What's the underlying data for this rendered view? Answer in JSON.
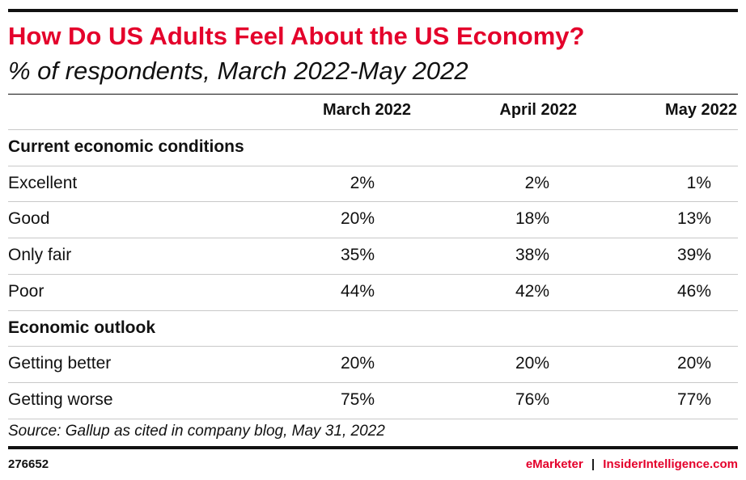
{
  "header": {
    "title": "How Do US Adults Feel About the US Economy?",
    "subtitle": "% of respondents, March 2022-May 2022"
  },
  "table": {
    "columns": [
      "March 2022",
      "April 2022",
      "May 2022"
    ],
    "sections": [
      {
        "title": "Current economic conditions",
        "rows": [
          {
            "label": "Excellent",
            "values": [
              "2%",
              "2%",
              "1%"
            ]
          },
          {
            "label": "Good",
            "values": [
              "20%",
              "18%",
              "13%"
            ]
          },
          {
            "label": "Only fair",
            "values": [
              "35%",
              "38%",
              "39%"
            ]
          },
          {
            "label": "Poor",
            "values": [
              "44%",
              "42%",
              "46%"
            ]
          }
        ]
      },
      {
        "title": "Economic outlook",
        "rows": [
          {
            "label": "Getting better",
            "values": [
              "20%",
              "20%",
              "20%"
            ]
          },
          {
            "label": "Getting worse",
            "values": [
              "75%",
              "76%",
              "77%"
            ]
          }
        ]
      }
    ]
  },
  "source": "Source: Gallup as cited in company blog, May 31, 2022",
  "footer": {
    "id": "276652",
    "brand": "eMarketer",
    "separator": "|",
    "site": "InsiderIntelligence.com"
  }
}
